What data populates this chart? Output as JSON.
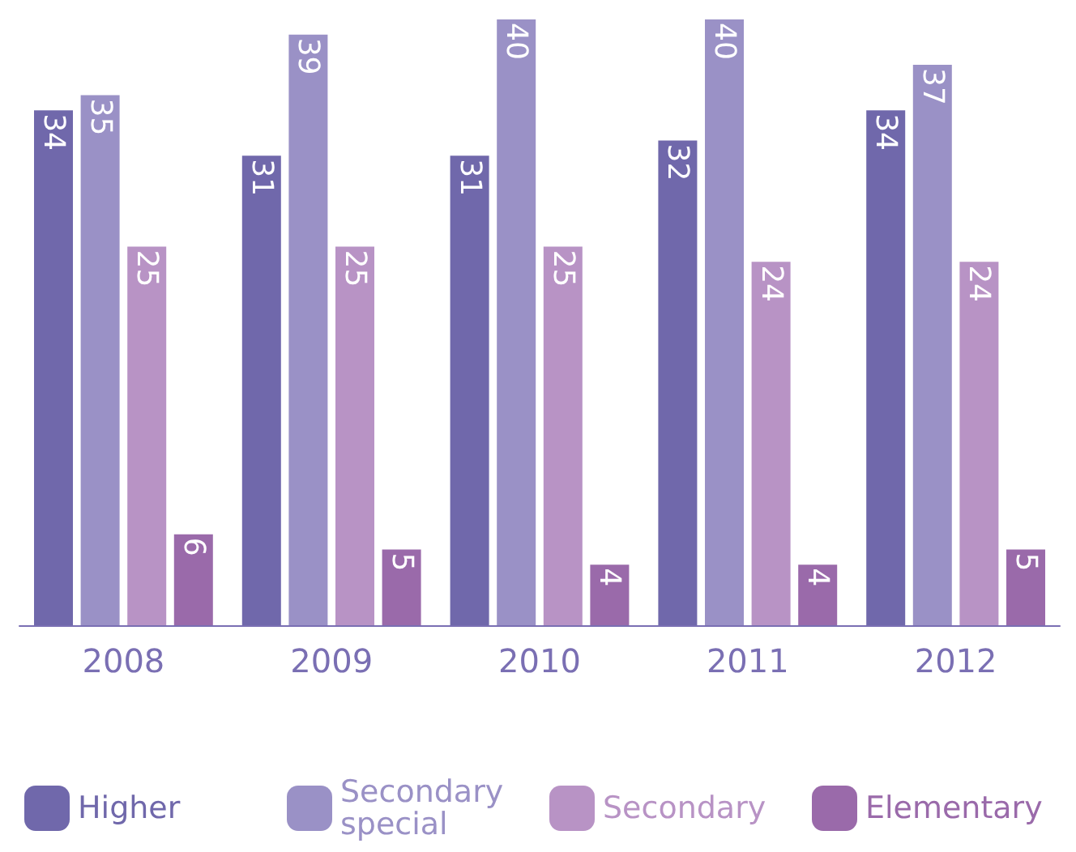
{
  "chart_data": {
    "type": "bar",
    "categories": [
      "2008",
      "2009",
      "2010",
      "2011",
      "2012"
    ],
    "series": [
      {
        "name": "Higher",
        "color": "#7068ab",
        "values": [
          34,
          31,
          31,
          32,
          34
        ]
      },
      {
        "name": "Secondary special",
        "color": "#9a91c6",
        "values": [
          35,
          39,
          40,
          40,
          37
        ]
      },
      {
        "name": "Secondary",
        "color": "#b893c5",
        "values": [
          25,
          25,
          25,
          24,
          24
        ]
      },
      {
        "name": "Elementary",
        "color": "#9a6aaa",
        "values": [
          6,
          5,
          4,
          4,
          5
        ]
      }
    ],
    "data_labels": true,
    "legend": "bottom",
    "grid": false
  }
}
